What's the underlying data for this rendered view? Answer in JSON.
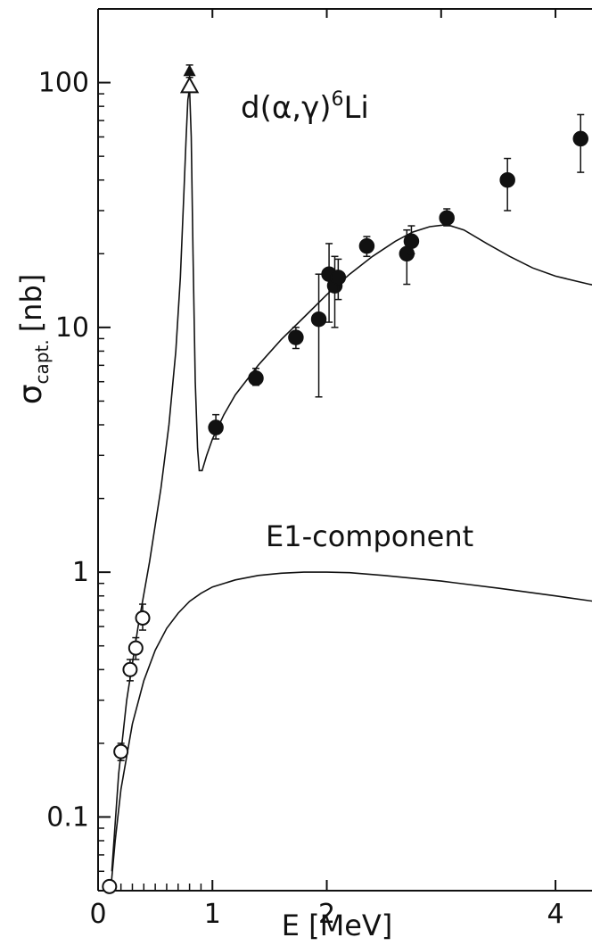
{
  "chart_data": {
    "type": "scatter",
    "title": "",
    "xlabel": "E [MeV]",
    "ylabel_main": "σ",
    "ylabel_sub": "capt.",
    "ylabel_unit": "[nb]",
    "x_scale": "linear",
    "y_scale": "log",
    "xlim": [
      0,
      4.6
    ],
    "ylim": [
      0.05,
      200
    ],
    "x_ticks": [
      0,
      1,
      2,
      4
    ],
    "x_tick_labels": [
      "0",
      "1",
      "2",
      "4"
    ],
    "y_ticks": [
      0.1,
      1,
      10,
      100
    ],
    "y_tick_labels": [
      "0.1",
      "1",
      "10",
      "100"
    ],
    "grid": false,
    "annotations": [
      {
        "text_main": "d(α,γ)",
        "sup": "6",
        "text_tail": "Li"
      },
      {
        "text": "E1-component"
      }
    ],
    "series": [
      {
        "marker": "filled-circle",
        "points": [
          {
            "x": 1.03,
            "y": 3.9,
            "err": [
              3.5,
              4.4
            ]
          },
          {
            "x": 1.38,
            "y": 6.2,
            "err": [
              5.8,
              6.8
            ]
          },
          {
            "x": 1.73,
            "y": 9.1,
            "err": [
              8.2,
              10.0
            ]
          },
          {
            "x": 1.93,
            "y": 10.8,
            "err": [
              5.2,
              16.5
            ]
          },
          {
            "x": 2.02,
            "y": 16.5,
            "err": [
              10.5,
              22.0
            ]
          },
          {
            "x": 2.07,
            "y": 14.8,
            "err": [
              10.0,
              19.5
            ]
          },
          {
            "x": 2.1,
            "y": 16.0,
            "err": [
              13.0,
              19.0
            ]
          },
          {
            "x": 2.35,
            "y": 21.5,
            "err": [
              19.5,
              23.5
            ]
          },
          {
            "x": 2.7,
            "y": 20.0,
            "err": [
              15.0,
              25.0
            ]
          },
          {
            "x": 2.74,
            "y": 22.5,
            "err": [
              20.0,
              26.0
            ]
          },
          {
            "x": 3.05,
            "y": 28.0,
            "err": [
              26.0,
              30.5
            ]
          },
          {
            "x": 3.58,
            "y": 40.0,
            "err": [
              30.0,
              49.0
            ]
          },
          {
            "x": 4.22,
            "y": 59.0,
            "err": [
              43.0,
              74.0
            ]
          }
        ]
      },
      {
        "marker": "open-circle",
        "points": [
          {
            "x": 0.1,
            "y": 0.052,
            "err": [
              0.05,
              0.055
            ]
          },
          {
            "x": 0.2,
            "y": 0.185,
            "err": [
              0.17,
              0.2
            ]
          },
          {
            "x": 0.28,
            "y": 0.4,
            "err": [
              0.36,
              0.44
            ]
          },
          {
            "x": 0.33,
            "y": 0.49,
            "err": [
              0.44,
              0.54
            ]
          },
          {
            "x": 0.39,
            "y": 0.65,
            "err": [
              0.58,
              0.74
            ]
          }
        ]
      },
      {
        "marker": "filled-triangle",
        "points": [
          {
            "x": 0.8,
            "y": 110,
            "err": [
              105,
              118
            ]
          }
        ]
      },
      {
        "marker": "open-triangle",
        "points": [
          {
            "x": 0.8,
            "y": 96
          }
        ]
      },
      {
        "marker": "line",
        "points": [
          [
            0.12,
            0.06
          ],
          [
            0.18,
            0.15
          ],
          [
            0.25,
            0.3
          ],
          [
            0.35,
            0.6
          ],
          [
            0.45,
            1.1
          ],
          [
            0.55,
            2.2
          ],
          [
            0.62,
            4.0
          ],
          [
            0.68,
            8.0
          ],
          [
            0.72,
            16
          ],
          [
            0.75,
            35
          ],
          [
            0.77,
            60
          ],
          [
            0.785,
            85
          ],
          [
            0.8,
            95
          ],
          [
            0.815,
            60
          ],
          [
            0.83,
            20
          ],
          [
            0.85,
            6
          ],
          [
            0.87,
            3.2
          ],
          [
            0.885,
            2.6
          ],
          [
            0.91,
            2.6
          ],
          [
            0.95,
            3.0
          ],
          [
            1.0,
            3.5
          ],
          [
            1.1,
            4.4
          ],
          [
            1.2,
            5.3
          ],
          [
            1.4,
            7.0
          ],
          [
            1.6,
            8.9
          ],
          [
            1.8,
            11.0
          ],
          [
            2.0,
            13.6
          ],
          [
            2.2,
            16.5
          ],
          [
            2.4,
            19.5
          ],
          [
            2.6,
            22.5
          ],
          [
            2.75,
            24.5
          ],
          [
            2.9,
            25.8
          ],
          [
            3.05,
            26.3
          ],
          [
            3.2,
            25.0
          ],
          [
            3.4,
            22.0
          ],
          [
            3.6,
            19.5
          ],
          [
            3.8,
            17.5
          ],
          [
            4.0,
            16.2
          ],
          [
            4.3,
            15.0
          ],
          [
            4.6,
            14.2
          ]
        ]
      },
      {
        "marker": "line",
        "points": [
          [
            0.11,
            0.05
          ],
          [
            0.15,
            0.08
          ],
          [
            0.2,
            0.13
          ],
          [
            0.3,
            0.24
          ],
          [
            0.4,
            0.36
          ],
          [
            0.5,
            0.48
          ],
          [
            0.6,
            0.59
          ],
          [
            0.7,
            0.68
          ],
          [
            0.8,
            0.76
          ],
          [
            0.9,
            0.82
          ],
          [
            1.0,
            0.87
          ],
          [
            1.2,
            0.93
          ],
          [
            1.4,
            0.97
          ],
          [
            1.6,
            0.99
          ],
          [
            1.8,
            1.0
          ],
          [
            2.0,
            1.0
          ],
          [
            2.2,
            0.995
          ],
          [
            2.5,
            0.97
          ],
          [
            3.0,
            0.92
          ],
          [
            3.5,
            0.86
          ],
          [
            4.0,
            0.8
          ],
          [
            4.6,
            0.73
          ]
        ]
      }
    ]
  }
}
